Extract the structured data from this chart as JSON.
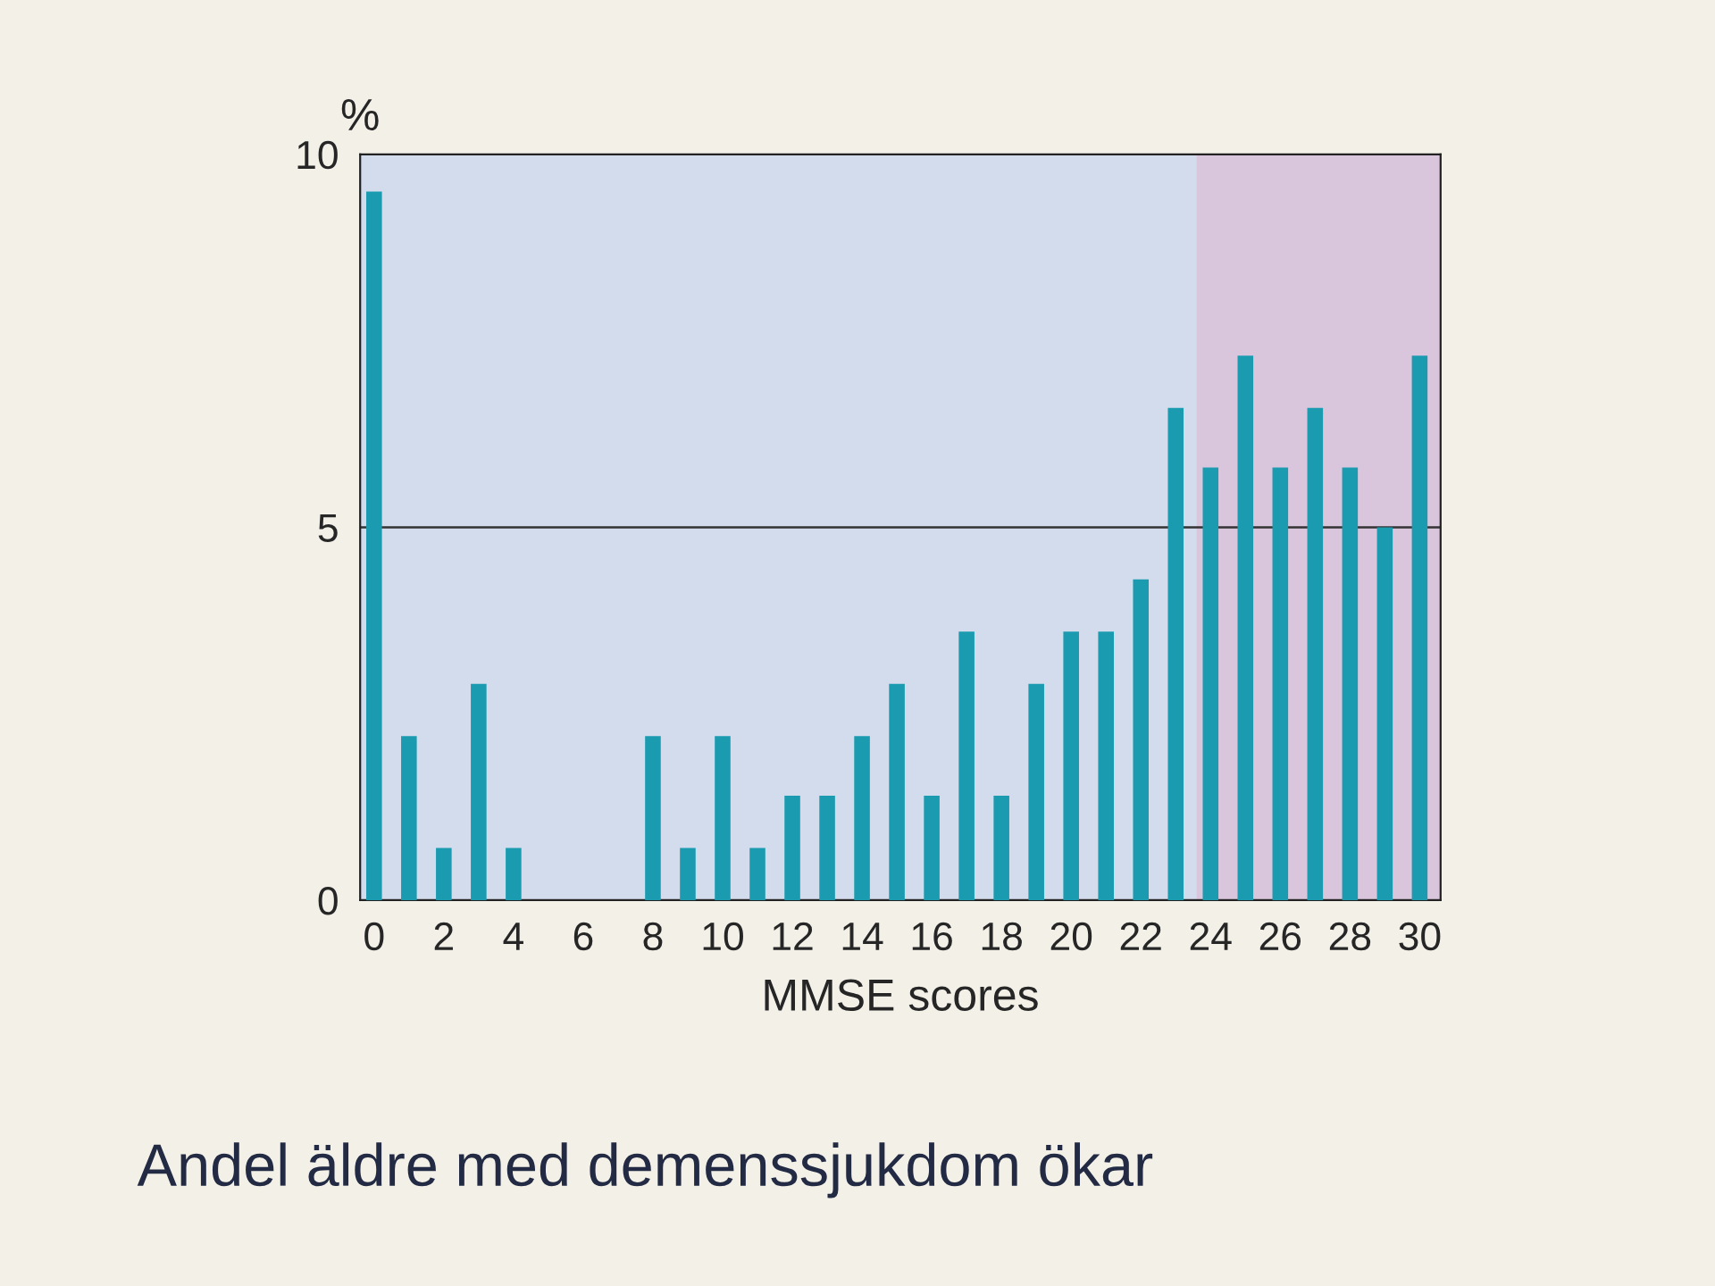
{
  "chart_data": {
    "type": "bar",
    "title": "Andel äldre med demenssjukdom ökar",
    "xlabel": "MMSE scores",
    "ylabel": "%",
    "x": [
      0,
      1,
      2,
      3,
      4,
      5,
      6,
      7,
      8,
      9,
      10,
      11,
      12,
      13,
      14,
      15,
      16,
      17,
      18,
      19,
      20,
      21,
      22,
      23,
      24,
      25,
      26,
      27,
      28,
      29,
      30
    ],
    "values": [
      9.5,
      2.2,
      0.7,
      2.9,
      0.7,
      0,
      0,
      0,
      2.2,
      0.7,
      2.2,
      0.7,
      1.4,
      1.4,
      2.2,
      2.9,
      1.4,
      3.6,
      1.4,
      2.9,
      3.6,
      3.6,
      4.3,
      6.6,
      5.8,
      7.3,
      5.8,
      6.6,
      5.8,
      5.0,
      7.3
    ],
    "color": "#1a9bb0",
    "xlim": [
      -0.4,
      30.6
    ],
    "xticks": [
      0,
      2,
      4,
      6,
      8,
      10,
      12,
      14,
      16,
      18,
      20,
      22,
      24,
      26,
      28,
      30
    ],
    "ylim": [
      0,
      10
    ],
    "yticks": [
      0,
      5,
      10
    ],
    "grid": "y",
    "bands": [
      {
        "axis": "x",
        "from": 23.6,
        "to": 30.6,
        "color": "#d9c6dd"
      }
    ]
  }
}
